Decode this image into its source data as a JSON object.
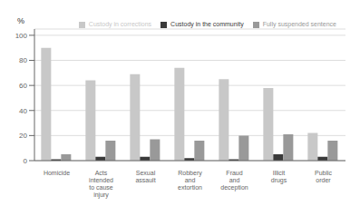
{
  "chart_data": {
    "type": "bar",
    "categories": [
      "Homicide",
      "Acts\nintended\nto cause\ninjury",
      "Sexual\nassault",
      "Robbery\nand\nextortion",
      "Fraud\nand\ndeception",
      "Illicit\ndrugs",
      "Public\norder"
    ],
    "series": [
      {
        "name": "Custody in corrections",
        "color": "#c8c8c8",
        "values": [
          90,
          64,
          69,
          74,
          65,
          58,
          22
        ]
      },
      {
        "name": "Custody in the community",
        "color": "#3a3a3a",
        "values": [
          1,
          3,
          3,
          2,
          1,
          5,
          3
        ]
      },
      {
        "name": "Fully suspended sentence",
        "color": "#999999",
        "values": [
          5,
          16,
          17,
          16,
          20,
          21,
          16
        ]
      }
    ],
    "ylabel": "%",
    "ylim": [
      0,
      105
    ],
    "yticks": [
      0,
      20,
      40,
      60,
      80,
      100
    ],
    "grid": true,
    "legend": "upper right"
  }
}
